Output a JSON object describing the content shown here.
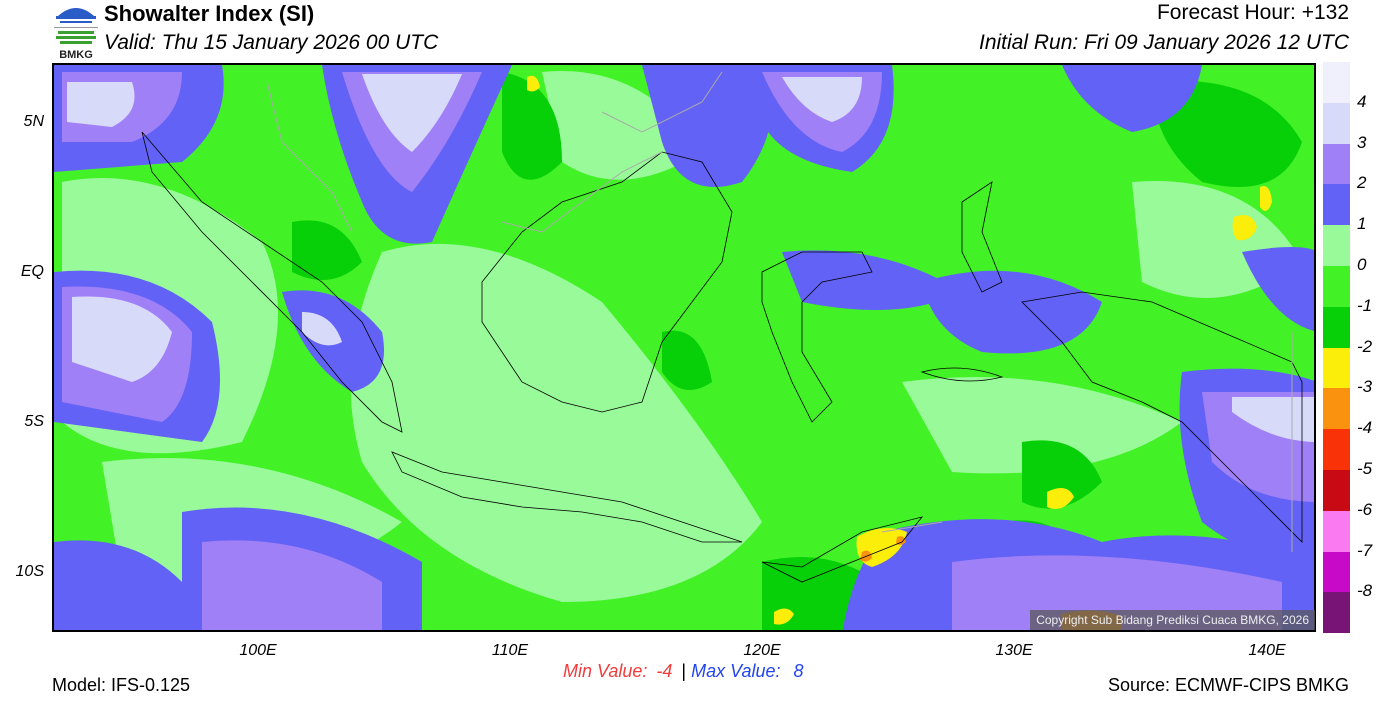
{
  "header": {
    "title": "Showalter Index (SI)",
    "valid": "Valid: Thu 15 January 2026 00 UTC",
    "forecast_hour": "Forecast Hour: +132",
    "initial_run": "Initial Run: Fri 09 January 2026 12 UTC",
    "logo_text": "BMKG"
  },
  "map": {
    "lat_labels": [
      "5N",
      "EQ",
      "5S",
      "10S"
    ],
    "lon_labels": [
      "100E",
      "110E",
      "120E",
      "130E",
      "140E"
    ],
    "copyright": "Copyright Sub Bidang Prediksi Cuaca BMKG, 2026"
  },
  "colorbar": {
    "labels": [
      "4",
      "3",
      "2",
      "1",
      "0",
      "-1",
      "-2",
      "-3",
      "-4",
      "-5",
      "-6",
      "-7",
      "-8"
    ],
    "colors": [
      "#f0f0fd",
      "#d8dafa",
      "#a080f6",
      "#6262f6",
      "#98fa98",
      "#42f226",
      "#08d008",
      "#faee0a",
      "#fa9210",
      "#fa3208",
      "#c80a14",
      "#fa7af2",
      "#c60ac8",
      "#781476"
    ]
  },
  "footer": {
    "model": "Model: IFS-0.125",
    "min_label": "Min Value:",
    "min_value": "-4",
    "separator": "|",
    "max_label": "Max Value:",
    "max_value": "8",
    "source": "Source: ECMWF-CIPS BMKG"
  }
}
